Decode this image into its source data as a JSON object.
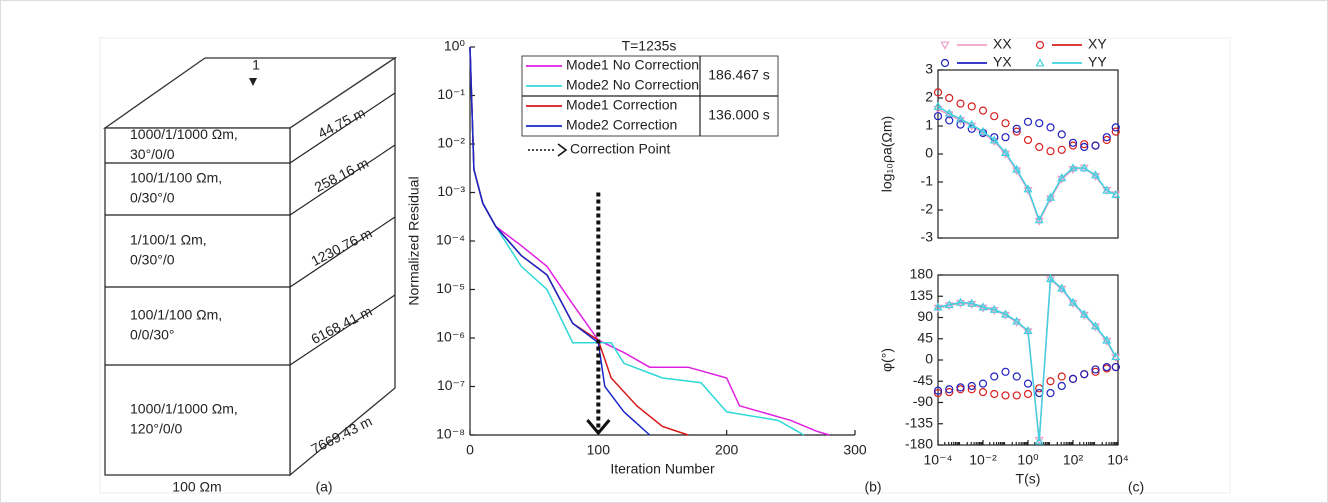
{
  "panel_a": {
    "label": "(a)",
    "top_marker": "1",
    "bottom": "100 Ωm",
    "layers": [
      {
        "lines": [
          "1000/1/1000 Ωm,",
          "30°/0/0"
        ],
        "thickness": "44.75 m"
      },
      {
        "lines": [
          "100/1/100 Ωm,",
          "0/30°/0"
        ],
        "thickness": "258.16 m"
      },
      {
        "lines": [
          "1/100/1 Ωm,",
          "0/30°/0"
        ],
        "thickness": "1230.76 m"
      },
      {
        "lines": [
          "100/1/100 Ωm,",
          "0/0/30°"
        ],
        "thickness": "6168.41 m"
      },
      {
        "lines": [
          "1000/1/1000 Ωm,",
          "120°/0/0"
        ],
        "thickness": "7669.43 m"
      }
    ]
  },
  "chart_data": [
    {
      "type": "line",
      "panel_label": "(b)",
      "title": "T=1235s",
      "x_label": "Iteration Number",
      "y_label": "Normalized Residual",
      "xlim": [
        0,
        300
      ],
      "xticks": [
        0,
        100,
        200,
        300
      ],
      "ylog": true,
      "ylim": [
        1e-08,
        1
      ],
      "yticks": [
        {
          "value": 1,
          "label": "10⁰"
        },
        {
          "value": 0.1,
          "label": "10⁻¹"
        },
        {
          "value": 0.01,
          "label": "10⁻²"
        },
        {
          "value": 0.001,
          "label": "10⁻³"
        },
        {
          "value": 0.0001,
          "label": "10⁻⁴"
        },
        {
          "value": 1e-05,
          "label": "10⁻⁵"
        },
        {
          "value": 1e-06,
          "label": "10⁻⁶"
        },
        {
          "value": 1e-07,
          "label": "10⁻⁷"
        },
        {
          "value": 1e-08,
          "label": "10⁻⁸"
        }
      ],
      "legend_times": [
        "186.467 s",
        "136.000 s"
      ],
      "annotation": {
        "label": "Correction Point",
        "x": 100,
        "y_from": 0.001,
        "y_to": 1e-08
      },
      "series": [
        {
          "name": "Mode1 No Correction",
          "color": "#e020e0",
          "x": [
            0,
            3,
            10,
            20,
            40,
            60,
            80,
            100,
            120,
            140,
            170,
            200,
            210,
            250,
            270,
            280
          ],
          "values": [
            1,
            0.003,
            0.0006,
            0.0002,
            8e-05,
            3e-05,
            5e-06,
            9e-07,
            5e-07,
            2.5e-07,
            2.5e-07,
            1.5e-07,
            4e-08,
            2e-08,
            1.2e-08,
            1e-08
          ]
        },
        {
          "name": "Mode2 No Correction",
          "color": "#30d8d8",
          "x": [
            0,
            3,
            10,
            20,
            40,
            60,
            80,
            100,
            110,
            120,
            150,
            180,
            200,
            240,
            255,
            260
          ],
          "values": [
            1,
            0.003,
            0.0006,
            0.0002,
            3e-05,
            1e-05,
            8e-07,
            8e-07,
            8e-07,
            3e-07,
            1.5e-07,
            1.2e-07,
            3e-08,
            2e-08,
            1.2e-08,
            1e-08
          ]
        },
        {
          "name": "Mode1 Correction",
          "color": "#d81818",
          "x": [
            0,
            3,
            10,
            20,
            40,
            60,
            80,
            100,
            110,
            130,
            150,
            170
          ],
          "values": [
            1,
            0.003,
            0.0006,
            0.0002,
            5e-05,
            2e-05,
            2e-06,
            9e-07,
            1.5e-07,
            4e-08,
            1.5e-08,
            1e-08
          ]
        },
        {
          "name": "Mode2 Correction",
          "color": "#1828c8",
          "x": [
            0,
            3,
            10,
            20,
            40,
            60,
            80,
            100,
            105,
            120,
            140
          ],
          "values": [
            1,
            0.003,
            0.0006,
            0.0002,
            5e-05,
            2e-05,
            2e-06,
            8e-07,
            1e-07,
            3e-08,
            1e-08
          ]
        }
      ]
    },
    {
      "type": "line",
      "y_label": "log₁₀ρa(Ωm)",
      "xlog": true,
      "xlim": [
        0.0001,
        10000
      ],
      "ylim": [
        -3,
        3
      ],
      "yticks": [
        -3,
        -2,
        -1,
        0,
        1,
        2,
        3
      ],
      "x": [
        0.0001,
        0.000316,
        0.001,
        0.00316,
        0.01,
        0.0316,
        0.1,
        0.316,
        1,
        3.16,
        10,
        31.6,
        100,
        316,
        1000,
        3162,
        7943
      ],
      "series": [
        {
          "name": "XX",
          "color": "#f0a0c8",
          "marker": "triangle-down",
          "line": true,
          "values": [
            1.6,
            1.4,
            1.2,
            1.0,
            0.75,
            0.45,
            0,
            -0.6,
            -1.3,
            -2.4,
            -1.6,
            -0.9,
            -0.55,
            -0.5,
            -0.8,
            -1.3,
            -1.45
          ]
        },
        {
          "name": "XY",
          "color": "#d82020",
          "marker": "circle",
          "line": false,
          "values": [
            2.2,
            2.0,
            1.8,
            1.7,
            1.55,
            1.35,
            1.1,
            0.8,
            0.5,
            0.25,
            0.1,
            0.15,
            0.3,
            0.35,
            0.3,
            0.5,
            0.8
          ]
        },
        {
          "name": "YX",
          "color": "#2020c0",
          "marker": "circle",
          "line": false,
          "values": [
            1.35,
            1.2,
            1.05,
            0.9,
            0.75,
            0.6,
            0.6,
            0.9,
            1.15,
            1.1,
            0.95,
            0.7,
            0.4,
            0.25,
            0.3,
            0.6,
            0.95
          ]
        },
        {
          "name": "YY",
          "color": "#40d0e0",
          "marker": "triangle-up",
          "line": true,
          "values": [
            1.7,
            1.45,
            1.25,
            1.05,
            0.8,
            0.5,
            0.05,
            -0.55,
            -1.25,
            -2.35,
            -1.55,
            -0.85,
            -0.5,
            -0.5,
            -0.75,
            -1.3,
            -1.45
          ]
        }
      ]
    },
    {
      "type": "line",
      "panel_label": "(c)",
      "x_label": "T(s)",
      "y_label": "φ(°)",
      "xlog": true,
      "xlim": [
        0.0001,
        10000
      ],
      "xticks": [
        {
          "value": 0.0001,
          "label": "10⁻⁴"
        },
        {
          "value": 0.01,
          "label": "10⁻²"
        },
        {
          "value": 1,
          "label": "10⁰"
        },
        {
          "value": 100,
          "label": "10²"
        },
        {
          "value": 10000,
          "label": "10⁴"
        }
      ],
      "ylim": [
        -180,
        180
      ],
      "yticks": [
        -180,
        -135,
        -90,
        -45,
        0,
        45,
        90,
        135,
        180
      ],
      "x": [
        0.0001,
        0.000316,
        0.001,
        0.00316,
        0.01,
        0.0316,
        0.1,
        0.316,
        1,
        3.16,
        10,
        31.6,
        100,
        316,
        1000,
        3162,
        7943
      ],
      "series": [
        {
          "name": "XX",
          "color": "#f0a0c8",
          "marker": "triangle-down",
          "line": true,
          "values": [
            110,
            115,
            120,
            118,
            110,
            105,
            95,
            80,
            60,
            -170,
            170,
            150,
            120,
            95,
            70,
            40,
            5
          ]
        },
        {
          "name": "XY",
          "color": "#d82020",
          "marker": "circle",
          "line": false,
          "values": [
            -70,
            -68,
            -62,
            -62,
            -68,
            -72,
            -75,
            -75,
            -72,
            -60,
            -45,
            -35,
            -40,
            -30,
            -25,
            -18,
            -15
          ]
        },
        {
          "name": "YX",
          "color": "#2020c0",
          "marker": "circle",
          "line": false,
          "values": [
            -65,
            -62,
            -58,
            -55,
            -50,
            -35,
            -25,
            -35,
            -50,
            -70,
            -70,
            -55,
            -40,
            -30,
            -20,
            -15,
            -15
          ]
        },
        {
          "name": "YY",
          "color": "#40d0e0",
          "marker": "triangle-up",
          "line": true,
          "values": [
            112,
            117,
            122,
            120,
            112,
            107,
            97,
            82,
            62,
            -172,
            172,
            152,
            122,
            97,
            72,
            42,
            7
          ]
        }
      ]
    }
  ]
}
